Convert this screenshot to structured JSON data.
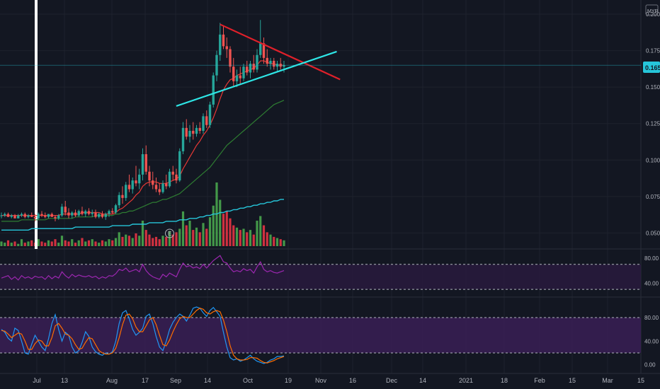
{
  "currency": "MYR",
  "last_price": "0.165",
  "colors": {
    "background": "#131722",
    "grid": "#1e222d",
    "up": "#26a69a",
    "up_candle": "#26a69a",
    "down_candle": "#ef5350",
    "volume_up": "#4caf50",
    "volume_down": "#f23645",
    "ma_fast": "#e53935",
    "ma_mid": "#2e7d32",
    "ma_slow": "#26c6da",
    "trend_upper": "#e0202a",
    "trend_lower": "#2ee6e6",
    "rsi_line": "#9c27b0",
    "rsi_band": "#2a1a40",
    "stoch_k": "#2196f3",
    "stoch_d": "#ff6d00",
    "stoch_band": "#3a1f55",
    "price_tag": "#26c6da",
    "vertical_marker": "#ffffff"
  },
  "chart_data": [
    {
      "type": "candlestick",
      "ylim": [
        0.04,
        0.2
      ],
      "y_ticks": [
        "0.050",
        "0.075",
        "0.100",
        "0.125",
        "0.150",
        "0.175",
        "0.200"
      ],
      "x_ticks": [
        "Jul",
        "13",
        "Aug",
        "17",
        "Sep",
        "14",
        "Oct",
        "19",
        "Nov",
        "16",
        "Dec",
        "14",
        "2021",
        "18",
        "Feb",
        "15",
        "Mar",
        "15"
      ],
      "last_price": 0.165,
      "annotations": [
        "E"
      ],
      "note_candles": "daily OHLC estimated from chart, ~Jun to mid Oct 2020",
      "ohlc": [
        [
          0.062,
          0.064,
          0.06,
          0.062
        ],
        [
          0.062,
          0.064,
          0.061,
          0.063
        ],
        [
          0.063,
          0.064,
          0.061,
          0.061
        ],
        [
          0.061,
          0.063,
          0.06,
          0.062
        ],
        [
          0.062,
          0.063,
          0.06,
          0.06
        ],
        [
          0.06,
          0.063,
          0.06,
          0.062
        ],
        [
          0.062,
          0.064,
          0.061,
          0.063
        ],
        [
          0.063,
          0.064,
          0.06,
          0.061
        ],
        [
          0.061,
          0.063,
          0.06,
          0.062
        ],
        [
          0.062,
          0.064,
          0.061,
          0.061
        ],
        [
          0.061,
          0.063,
          0.058,
          0.06
        ],
        [
          0.06,
          0.064,
          0.059,
          0.063
        ],
        [
          0.063,
          0.065,
          0.061,
          0.062
        ],
        [
          0.062,
          0.064,
          0.06,
          0.061
        ],
        [
          0.061,
          0.063,
          0.06,
          0.063
        ],
        [
          0.063,
          0.064,
          0.061,
          0.061
        ],
        [
          0.061,
          0.062,
          0.058,
          0.06
        ],
        [
          0.06,
          0.063,
          0.059,
          0.062
        ],
        [
          0.062,
          0.07,
          0.061,
          0.068
        ],
        [
          0.068,
          0.072,
          0.062,
          0.064
        ],
        [
          0.064,
          0.067,
          0.06,
          0.062
        ],
        [
          0.062,
          0.065,
          0.06,
          0.064
        ],
        [
          0.064,
          0.066,
          0.061,
          0.062
        ],
        [
          0.062,
          0.066,
          0.061,
          0.065
        ],
        [
          0.065,
          0.068,
          0.062,
          0.063
        ],
        [
          0.063,
          0.066,
          0.061,
          0.065
        ],
        [
          0.065,
          0.067,
          0.062,
          0.063
        ],
        [
          0.063,
          0.066,
          0.061,
          0.064
        ],
        [
          0.064,
          0.066,
          0.06,
          0.061
        ],
        [
          0.061,
          0.064,
          0.06,
          0.063
        ],
        [
          0.063,
          0.065,
          0.06,
          0.061
        ],
        [
          0.061,
          0.064,
          0.059,
          0.063
        ],
        [
          0.063,
          0.066,
          0.061,
          0.065
        ],
        [
          0.065,
          0.067,
          0.063,
          0.064
        ],
        [
          0.064,
          0.07,
          0.063,
          0.069
        ],
        [
          0.069,
          0.078,
          0.067,
          0.076
        ],
        [
          0.076,
          0.082,
          0.07,
          0.074
        ],
        [
          0.074,
          0.085,
          0.072,
          0.083
        ],
        [
          0.083,
          0.09,
          0.078,
          0.08
        ],
        [
          0.08,
          0.088,
          0.077,
          0.086
        ],
        [
          0.086,
          0.096,
          0.082,
          0.084
        ],
        [
          0.084,
          0.094,
          0.08,
          0.09
        ],
        [
          0.09,
          0.108,
          0.086,
          0.104
        ],
        [
          0.104,
          0.11,
          0.09,
          0.092
        ],
        [
          0.092,
          0.096,
          0.082,
          0.086
        ],
        [
          0.086,
          0.092,
          0.08,
          0.083
        ],
        [
          0.083,
          0.088,
          0.078,
          0.08
        ],
        [
          0.08,
          0.084,
          0.076,
          0.078
        ],
        [
          0.078,
          0.086,
          0.077,
          0.084
        ],
        [
          0.084,
          0.09,
          0.08,
          0.082
        ],
        [
          0.082,
          0.094,
          0.081,
          0.092
        ],
        [
          0.092,
          0.096,
          0.086,
          0.09
        ],
        [
          0.09,
          0.094,
          0.084,
          0.086
        ],
        [
          0.086,
          0.108,
          0.085,
          0.106
        ],
        [
          0.106,
          0.126,
          0.104,
          0.122
        ],
        [
          0.122,
          0.128,
          0.114,
          0.116
        ],
        [
          0.116,
          0.124,
          0.112,
          0.12
        ],
        [
          0.12,
          0.126,
          0.114,
          0.118
        ],
        [
          0.118,
          0.124,
          0.116,
          0.122
        ],
        [
          0.122,
          0.126,
          0.118,
          0.12
        ],
        [
          0.12,
          0.132,
          0.118,
          0.13
        ],
        [
          0.13,
          0.134,
          0.122,
          0.124
        ],
        [
          0.124,
          0.14,
          0.122,
          0.138
        ],
        [
          0.138,
          0.16,
          0.136,
          0.158
        ],
        [
          0.158,
          0.175,
          0.154,
          0.172
        ],
        [
          0.172,
          0.194,
          0.168,
          0.186
        ],
        [
          0.186,
          0.192,
          0.176,
          0.178
        ],
        [
          0.178,
          0.184,
          0.17,
          0.176
        ],
        [
          0.176,
          0.178,
          0.16,
          0.164
        ],
        [
          0.164,
          0.17,
          0.15,
          0.154
        ],
        [
          0.154,
          0.162,
          0.15,
          0.158
        ],
        [
          0.158,
          0.164,
          0.152,
          0.156
        ],
        [
          0.156,
          0.166,
          0.154,
          0.164
        ],
        [
          0.164,
          0.168,
          0.158,
          0.16
        ],
        [
          0.16,
          0.168,
          0.156,
          0.166
        ],
        [
          0.166,
          0.172,
          0.16,
          0.162
        ],
        [
          0.162,
          0.176,
          0.16,
          0.172
        ],
        [
          0.172,
          0.196,
          0.17,
          0.18
        ],
        [
          0.18,
          0.184,
          0.166,
          0.17
        ],
        [
          0.17,
          0.176,
          0.164,
          0.166
        ],
        [
          0.166,
          0.17,
          0.162,
          0.168
        ],
        [
          0.168,
          0.17,
          0.162,
          0.164
        ],
        [
          0.164,
          0.168,
          0.16,
          0.166
        ],
        [
          0.166,
          0.17,
          0.162,
          0.164
        ],
        [
          0.164,
          0.168,
          0.16,
          0.165
        ]
      ],
      "volume": [
        4,
        3,
        5,
        3,
        4,
        2,
        6,
        3,
        4,
        5,
        3,
        6,
        4,
        3,
        5,
        4,
        6,
        3,
        9,
        5,
        4,
        6,
        3,
        5,
        7,
        4,
        5,
        6,
        4,
        3,
        5,
        4,
        6,
        5,
        7,
        12,
        8,
        10,
        9,
        7,
        11,
        9,
        22,
        14,
        10,
        7,
        8,
        6,
        9,
        8,
        13,
        10,
        12,
        15,
        30,
        18,
        22,
        14,
        16,
        12,
        20,
        15,
        25,
        35,
        55,
        40,
        28,
        30,
        24,
        18,
        16,
        14,
        15,
        12,
        14,
        10,
        22,
        26,
        18,
        12,
        10,
        8,
        7,
        6,
        5
      ],
      "ma_fast": [
        0.062,
        0.062,
        0.062,
        0.062,
        0.062,
        0.062,
        0.062,
        0.062,
        0.062,
        0.062,
        0.062,
        0.062,
        0.062,
        0.062,
        0.062,
        0.062,
        0.062,
        0.062,
        0.063,
        0.063,
        0.063,
        0.063,
        0.063,
        0.063,
        0.064,
        0.064,
        0.064,
        0.064,
        0.064,
        0.064,
        0.063,
        0.063,
        0.063,
        0.063,
        0.064,
        0.066,
        0.067,
        0.069,
        0.071,
        0.073,
        0.076,
        0.078,
        0.082,
        0.084,
        0.085,
        0.085,
        0.085,
        0.084,
        0.084,
        0.084,
        0.085,
        0.086,
        0.087,
        0.089,
        0.094,
        0.098,
        0.102,
        0.106,
        0.11,
        0.113,
        0.117,
        0.12,
        0.124,
        0.129,
        0.135,
        0.142,
        0.148,
        0.152,
        0.155,
        0.156,
        0.158,
        0.159,
        0.16,
        0.161,
        0.162,
        0.163,
        0.165,
        0.168,
        0.168,
        0.167,
        0.166,
        0.166,
        0.165,
        0.165,
        0.165
      ],
      "ma_mid": [
        0.058,
        0.058,
        0.058,
        0.058,
        0.058,
        0.058,
        0.059,
        0.059,
        0.059,
        0.059,
        0.059,
        0.059,
        0.059,
        0.059,
        0.06,
        0.06,
        0.06,
        0.06,
        0.06,
        0.06,
        0.06,
        0.06,
        0.061,
        0.061,
        0.061,
        0.061,
        0.061,
        0.061,
        0.062,
        0.062,
        0.062,
        0.062,
        0.062,
        0.062,
        0.063,
        0.063,
        0.064,
        0.064,
        0.065,
        0.065,
        0.066,
        0.067,
        0.068,
        0.069,
        0.07,
        0.071,
        0.071,
        0.072,
        0.073,
        0.073,
        0.074,
        0.075,
        0.076,
        0.077,
        0.079,
        0.081,
        0.083,
        0.085,
        0.087,
        0.089,
        0.091,
        0.093,
        0.095,
        0.098,
        0.101,
        0.104,
        0.107,
        0.11,
        0.112,
        0.114,
        0.116,
        0.118,
        0.12,
        0.122,
        0.124,
        0.126,
        0.128,
        0.13,
        0.132,
        0.134,
        0.136,
        0.138,
        0.139,
        0.14,
        0.141
      ],
      "ma_slow": [
        0.052,
        0.052,
        0.052,
        0.052,
        0.052,
        0.052,
        0.052,
        0.052,
        0.052,
        0.053,
        0.053,
        0.053,
        0.053,
        0.053,
        0.053,
        0.053,
        0.053,
        0.053,
        0.053,
        0.053,
        0.053,
        0.053,
        0.054,
        0.054,
        0.054,
        0.054,
        0.054,
        0.054,
        0.054,
        0.054,
        0.054,
        0.054,
        0.054,
        0.055,
        0.055,
        0.055,
        0.055,
        0.055,
        0.055,
        0.056,
        0.056,
        0.056,
        0.056,
        0.056,
        0.057,
        0.057,
        0.057,
        0.057,
        0.057,
        0.058,
        0.058,
        0.058,
        0.058,
        0.059,
        0.059,
        0.059,
        0.06,
        0.06,
        0.06,
        0.061,
        0.061,
        0.062,
        0.062,
        0.063,
        0.063,
        0.064,
        0.064,
        0.065,
        0.065,
        0.066,
        0.066,
        0.067,
        0.067,
        0.068,
        0.068,
        0.069,
        0.069,
        0.07,
        0.07,
        0.071,
        0.071,
        0.072,
        0.072,
        0.073,
        0.073
      ],
      "trendlines": [
        {
          "name": "upper",
          "from": [
            65,
            0.193
          ],
          "to": [
            99,
            0.157
          ]
        },
        {
          "name": "lower",
          "from": [
            52,
            0.137
          ],
          "to": [
            98,
            0.173
          ]
        }
      ]
    },
    {
      "type": "line",
      "indicator": "RSI",
      "ylim": [
        20,
        90
      ],
      "y_ticks": [
        "40.00",
        "80.00"
      ],
      "bands": [
        30,
        70
      ],
      "values": [
        48,
        50,
        52,
        46,
        50,
        45,
        52,
        48,
        50,
        47,
        51,
        49,
        50,
        46,
        52,
        47,
        51,
        48,
        58,
        52,
        48,
        54,
        50,
        53,
        51,
        50,
        52,
        49,
        51,
        47,
        50,
        48,
        52,
        51,
        55,
        62,
        60,
        64,
        58,
        60,
        62,
        58,
        70,
        60,
        54,
        50,
        48,
        46,
        54,
        50,
        56,
        53,
        50,
        62,
        72,
        66,
        68,
        64,
        66,
        63,
        70,
        64,
        70,
        76,
        80,
        84,
        74,
        72,
        64,
        58,
        60,
        58,
        63,
        60,
        62,
        56,
        66,
        74,
        62,
        58,
        60,
        57,
        56,
        58,
        60
      ]
    },
    {
      "type": "line",
      "indicator": "Stochastic",
      "ylim": [
        -10,
        110
      ],
      "y_ticks": [
        "0.00",
        "40.00",
        "80.00"
      ],
      "bands": [
        20,
        80
      ],
      "k": [
        60,
        55,
        45,
        40,
        62,
        58,
        40,
        20,
        18,
        35,
        50,
        40,
        30,
        24,
        44,
        70,
        85,
        60,
        40,
        55,
        50,
        30,
        20,
        24,
        38,
        56,
        48,
        30,
        22,
        18,
        16,
        20,
        18,
        22,
        40,
        70,
        88,
        92,
        78,
        60,
        50,
        55,
        62,
        82,
        86,
        70,
        48,
        30,
        24,
        40,
        60,
        72,
        80,
        86,
        82,
        74,
        84,
        96,
        98,
        96,
        88,
        82,
        92,
        97,
        90,
        82,
        55,
        30,
        12,
        8,
        10,
        6,
        8,
        12,
        16,
        10,
        6,
        4,
        2,
        4,
        8,
        10,
        14,
        14,
        15
      ],
      "d": [
        58,
        57,
        52,
        46,
        50,
        54,
        52,
        40,
        26,
        26,
        36,
        42,
        40,
        32,
        32,
        46,
        66,
        70,
        62,
        52,
        50,
        44,
        34,
        26,
        28,
        38,
        46,
        44,
        34,
        24,
        20,
        18,
        18,
        20,
        28,
        46,
        68,
        84,
        86,
        78,
        64,
        56,
        56,
        66,
        76,
        80,
        68,
        50,
        34,
        32,
        42,
        56,
        68,
        78,
        82,
        80,
        80,
        86,
        92,
        96,
        94,
        88,
        86,
        90,
        92,
        90,
        76,
        56,
        32,
        16,
        10,
        8,
        8,
        9,
        12,
        12,
        11,
        7,
        4,
        3,
        5,
        7,
        10,
        12,
        14
      ]
    }
  ]
}
